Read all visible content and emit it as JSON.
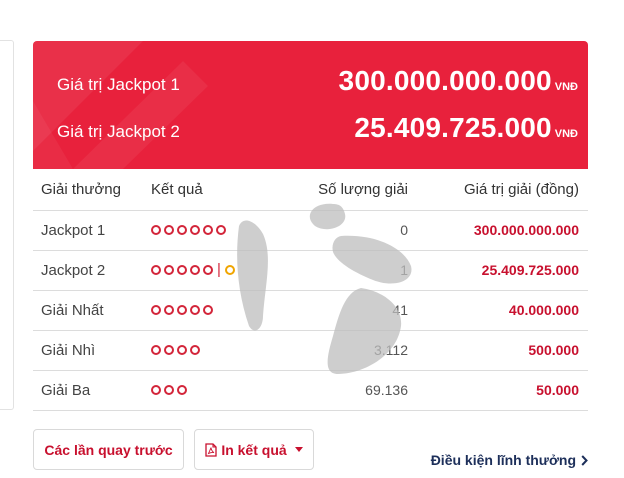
{
  "jackpot": {
    "rows": [
      {
        "label": "Giá trị Jackpot 1",
        "amount": "300.000.000.000",
        "unit": "VNĐ"
      },
      {
        "label": "Giá trị Jackpot 2",
        "amount": "25.409.725.000",
        "unit": "VNĐ"
      }
    ]
  },
  "table": {
    "headers": [
      "Giải thưởng",
      "Kết quả",
      "Số lượng giải",
      "Giá trị giải (đồng)"
    ],
    "rows": [
      {
        "prize": "Jackpot 1",
        "balls": 6,
        "separator": "",
        "extra_ball": 0,
        "count": "0",
        "value": "300.000.000.000"
      },
      {
        "prize": "Jackpot 2",
        "balls": 5,
        "separator": "|",
        "extra_ball": 1,
        "count": "1",
        "value": "25.409.725.000"
      },
      {
        "prize": "Giải Nhất",
        "balls": 5,
        "separator": "",
        "extra_ball": 0,
        "count": "41",
        "value": "40.000.000"
      },
      {
        "prize": "Giải Nhì",
        "balls": 4,
        "separator": "",
        "extra_ball": 0,
        "count": "3.112",
        "value": "500.000"
      },
      {
        "prize": "Giải Ba",
        "balls": 3,
        "separator": "",
        "extra_ball": 0,
        "count": "69.136",
        "value": "50.000"
      }
    ]
  },
  "actions": {
    "previous_draws_label": "Các lần quay trước",
    "print_label": "In kết quả",
    "terms_label": "Điều kiện lĩnh thưởng"
  },
  "icons": {
    "print": "pdf-icon",
    "dropdown": "caret-down-icon",
    "terms": "chevron-right-icon"
  },
  "colors": {
    "jackpot_bg": "#e8213c",
    "accent_red": "#c8102e",
    "ball_red": "#d3253a",
    "ball_yellow": "#f0a500",
    "link_navy": "#1d2f5a"
  }
}
